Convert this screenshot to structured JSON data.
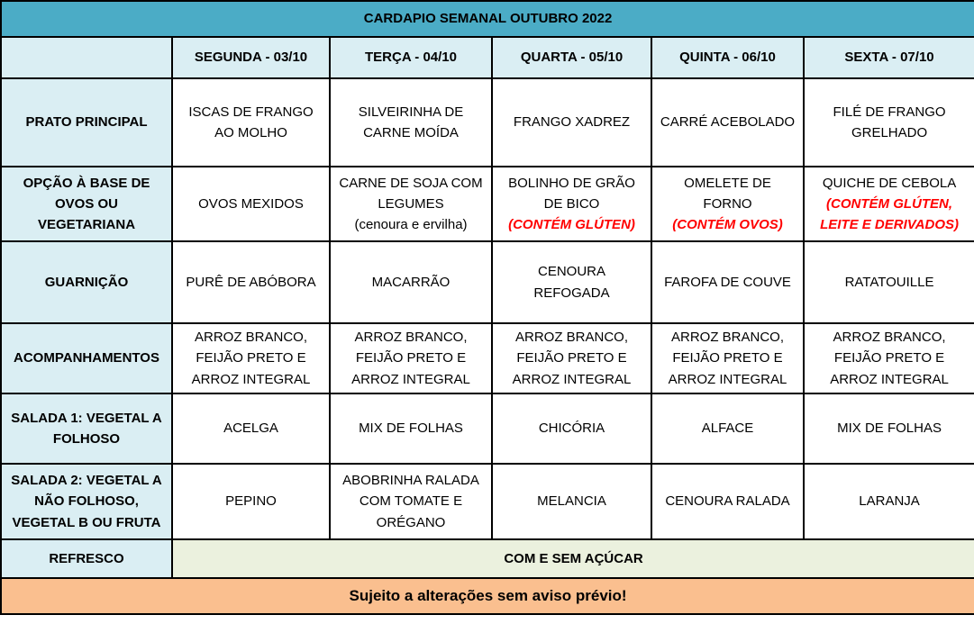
{
  "title": "CARDAPIO SEMANAL OUTUBRO 2022",
  "columns": [
    "SEGUNDA - 03/10",
    "TERÇA - 04/10",
    "QUARTA - 05/10",
    "QUINTA - 06/10",
    "SEXTA - 07/10"
  ],
  "rows": [
    {
      "label": "PRATO PRINCIPAL",
      "cells": [
        {
          "text": "ISCAS DE FRANGO AO MOLHO"
        },
        {
          "text": "SILVEIRINHA DE CARNE MOÍDA"
        },
        {
          "text": "FRANGO XADREZ"
        },
        {
          "text": "CARRÉ ACEBOLADO"
        },
        {
          "text": "FILÉ DE FRANGO GRELHADO"
        }
      ]
    },
    {
      "label": "OPÇÃO À BASE DE OVOS OU VEGETARIANA",
      "cells": [
        {
          "text": "OVOS MEXIDOS"
        },
        {
          "text": "CARNE DE SOJA COM LEGUMES",
          "note": "(cenoura e ervilha)"
        },
        {
          "text": "BOLINHO DE GRÃO DE BICO",
          "allergen": "(CONTÉM GLÚTEN)"
        },
        {
          "text": "OMELETE DE FORNO",
          "allergen": "(CONTÉM OVOS)"
        },
        {
          "text": "QUICHE DE CEBOLA",
          "allergen": "(CONTÉM GLÚTEN, LEITE E DERIVADOS)"
        }
      ]
    },
    {
      "label": "GUARNIÇÃO",
      "cells": [
        {
          "text": "PURÊ DE ABÓBORA"
        },
        {
          "text": "MACARRÃO"
        },
        {
          "text": "CENOURA REFOGADA"
        },
        {
          "text": "FAROFA DE COUVE"
        },
        {
          "text": "RATATOUILLE"
        }
      ]
    },
    {
      "label": "ACOMPANHAMENTOS",
      "cells": [
        {
          "text": "ARROZ BRANCO, FEIJÃO PRETO E ARROZ INTEGRAL"
        },
        {
          "text": "ARROZ BRANCO, FEIJÃO PRETO E ARROZ INTEGRAL"
        },
        {
          "text": "ARROZ BRANCO, FEIJÃO PRETO E ARROZ INTEGRAL"
        },
        {
          "text": "ARROZ BRANCO, FEIJÃO PRETO E ARROZ INTEGRAL"
        },
        {
          "text": "ARROZ BRANCO, FEIJÃO PRETO E ARROZ INTEGRAL"
        }
      ]
    },
    {
      "label": "SALADA 1: VEGETAL A FOLHOSO",
      "cells": [
        {
          "text": "ACELGA"
        },
        {
          "text": "MIX DE FOLHAS"
        },
        {
          "text": "CHICÓRIA"
        },
        {
          "text": "ALFACE"
        },
        {
          "text": "MIX DE FOLHAS"
        }
      ]
    },
    {
      "label": "SALADA 2: VEGETAL A NÃO FOLHOSO, VEGETAL B OU FRUTA",
      "cells": [
        {
          "text": "PEPINO"
        },
        {
          "text": "ABOBRINHA RALADA COM TOMATE E ORÉGANO"
        },
        {
          "text": "MELANCIA"
        },
        {
          "text": "CENOURA RALADA"
        },
        {
          "text": "LARANJA"
        }
      ]
    }
  ],
  "refresco": {
    "label": "REFRESCO",
    "value": "COM E SEM AÇÚCAR"
  },
  "footer": "Sujeito a alterações sem aviso prévio!",
  "colors": {
    "title_bg": "#4bacc6",
    "header_bg": "#daeef3",
    "label_bg": "#daeef3",
    "refresco_bg": "#ebf1de",
    "footer_bg": "#fabf8f",
    "allergen_text": "#ff0000",
    "border": "#000000"
  }
}
